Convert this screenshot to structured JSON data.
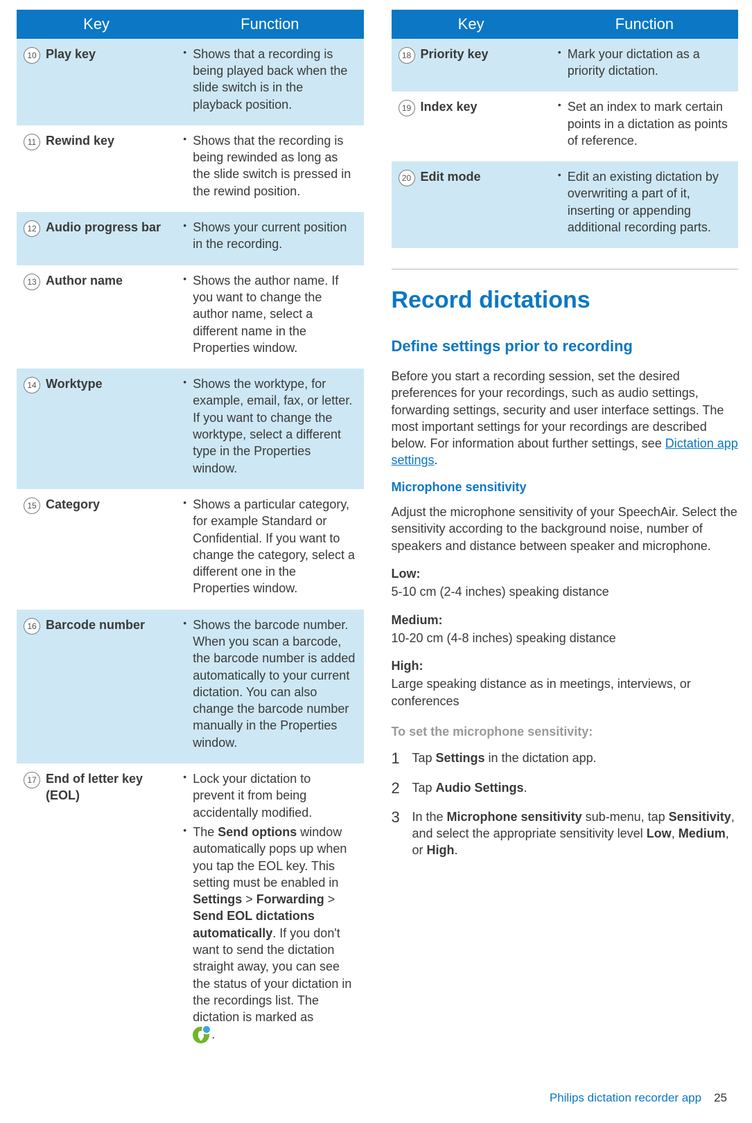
{
  "colors": {
    "header_bg": "#0b77c5",
    "row_alt_bg": "#cde8f4",
    "text": "#3a3a3a",
    "heading": "#0b77c5",
    "grey_label": "#9a9a9a",
    "rule": "#b8b8b8"
  },
  "left_table": {
    "headers": {
      "key": "Key",
      "function": "Function"
    },
    "rows": [
      {
        "num": "10",
        "name": "Play key",
        "alt": true,
        "items": [
          "Shows that a recording is being played back when the slide switch is in the playback position."
        ]
      },
      {
        "num": "11",
        "name": "Rewind key",
        "alt": false,
        "items": [
          "Shows that the recording is being rewinded as long as the slide switch is pressed in the rewind position."
        ]
      },
      {
        "num": "12",
        "name": "Audio progress bar",
        "alt": true,
        "items": [
          "Shows your current position in the recording."
        ]
      },
      {
        "num": "13",
        "name": "Author name",
        "alt": false,
        "items": [
          "Shows the author name. If you want to change the author name, select a different name in the Properties window."
        ]
      },
      {
        "num": "14",
        "name": "Worktype",
        "alt": true,
        "items": [
          "Shows the worktype, for example, email, fax, or letter. If you want to change the worktype, select a different type in the Properties window."
        ]
      },
      {
        "num": "15",
        "name": "Category",
        "alt": false,
        "items": [
          "Shows a particular category, for example Standard or Confidential. If you want to change the category, select a different one in the Properties window."
        ]
      },
      {
        "num": "16",
        "name": "Barcode number",
        "alt": true,
        "items": [
          "Shows the barcode number. When you scan a barcode, the barcode number is added automatically to your current dictation. You can also change the barcode number manually in the Properties window."
        ]
      },
      {
        "num": "17",
        "name": "End of letter key (EOL)",
        "alt": false,
        "items": [
          "Lock your dictation to prevent it from being accidentally modified.",
          "__EOL__"
        ]
      }
    ],
    "eol_rich": {
      "pre": "The ",
      "b1": "Send options",
      "mid1": " window automatically pops up when you tap the EOL key. This setting must be enabled in ",
      "b2": "Settings",
      "gt1": " > ",
      "b3": "Forwarding",
      "gt2": " > ",
      "b4": "Send EOL dictations automatically",
      "post": ". If you don't want to send the dictation straight away, you can see the status of your dictation in the recordings list. The dictation is marked as ",
      "period": "."
    }
  },
  "right_table": {
    "headers": {
      "key": "Key",
      "function": "Function"
    },
    "rows": [
      {
        "num": "18",
        "name": "Priority key",
        "alt": true,
        "items": [
          "Mark your dictation as a priority dictation."
        ]
      },
      {
        "num": "19",
        "name": "Index key",
        "alt": false,
        "items": [
          "Set an index to mark certain points in a dictation as points of reference."
        ]
      },
      {
        "num": "20",
        "name": "Edit mode",
        "alt": true,
        "items": [
          "Edit an existing dictation by overwriting a part of it, inserting or appending additional recording parts."
        ]
      }
    ]
  },
  "section": {
    "title": "Record dictations",
    "sub": "Define settings prior to recording",
    "intro_pre": "Before you start a recording session, set the desired preferences for your recordings, such as audio settings, forwarding settings, security and user interface settings. The most important settings for your recordings are described below. For information about further settings, see ",
    "intro_link": "Dictation app settings",
    "intro_post": ".",
    "mic_heading": "Microphone sensitivity",
    "mic_para": "Adjust the microphone sensitivity of your SpeechAir. Select the sensitivity according to the background noise, number of speakers and distance between speaker and microphone.",
    "levels": [
      {
        "label": "Low:",
        "text": "5-10 cm (2-4 inches) speaking distance"
      },
      {
        "label": "Medium:",
        "text": "10-20 cm (4-8 inches) speaking distance"
      },
      {
        "label": "High:",
        "text": "Large speaking distance as in meetings, interviews, or conferences"
      }
    ],
    "steps_heading": "To set the microphone sensitivity:",
    "steps": [
      {
        "pre": "Tap ",
        "b": "Settings",
        "post": " in the dictation app."
      },
      {
        "pre": "Tap ",
        "b": "Audio Settings",
        "post": "."
      },
      {
        "pre": "In the ",
        "b": "Microphone sensitivity",
        "mid": " sub-menu, tap ",
        "b2": "Sensitivity",
        "mid2": ", and select the appropriate sensitivity level ",
        "b3": "Low",
        "c1": ", ",
        "b4": "Medium",
        "c2": ", or ",
        "b5": "High",
        "post": "."
      }
    ]
  },
  "footer": {
    "title": "Philips dictation recorder app",
    "page": "25"
  }
}
